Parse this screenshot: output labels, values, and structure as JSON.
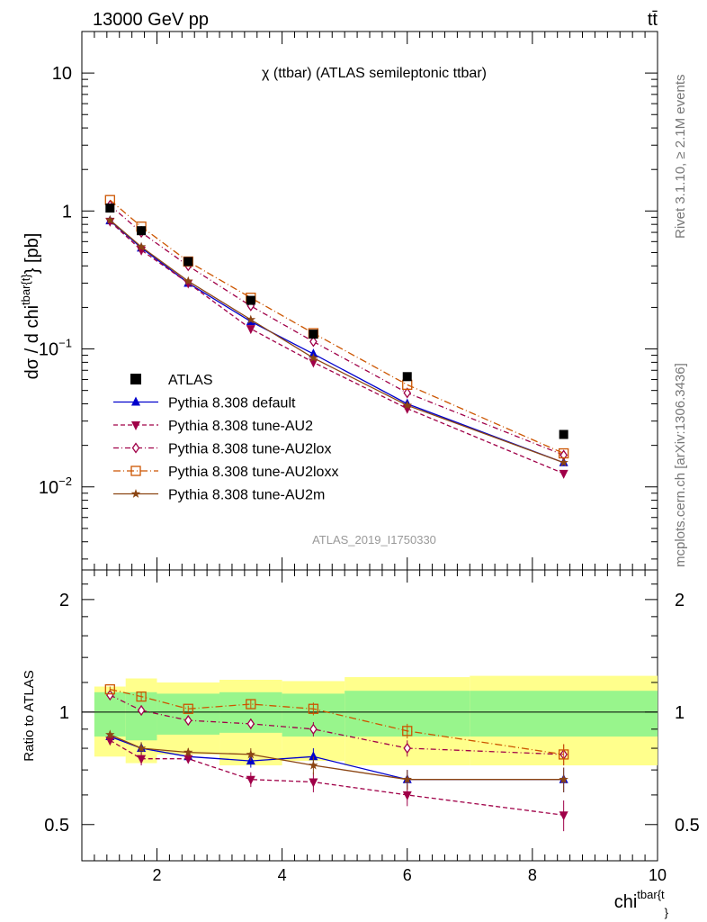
{
  "header": {
    "left": "13000 GeV pp",
    "right": "tt̄"
  },
  "side_text": {
    "rivet": "Rivet 3.1.10, ≥ 2.1M events",
    "mcplots": "mcplots.cern.ch [arXiv:1306.3436]"
  },
  "chart_data": {
    "type": "line",
    "title": "χ (ttbar) (ATLAS semileptonic ttbar)",
    "watermark": "ATLAS_2019_I1750330",
    "xlabel": "chi^{tbar{t}}",
    "ylabel": "dσ / d chi^{tbar{t}} [pb]",
    "ratio_ylabel": "Ratio to ATLAS",
    "xlim": [
      0.8,
      10
    ],
    "ylim": [
      0.0025,
      20
    ],
    "yscale": "log",
    "ratio_ylim": [
      0.4,
      2.4
    ],
    "x_ticks": [
      "2",
      "4",
      "6",
      "8",
      "10"
    ],
    "y_ticks": [
      "10^-2",
      "10^-1",
      "1",
      "10"
    ],
    "ratio_ticks": [
      "0.5",
      "1",
      "2"
    ],
    "bins": [
      {
        "lo": 1.0,
        "hi": 1.5
      },
      {
        "lo": 1.5,
        "hi": 2.0
      },
      {
        "lo": 2.0,
        "hi": 3.0
      },
      {
        "lo": 3.0,
        "hi": 4.0
      },
      {
        "lo": 4.0,
        "hi": 5.0
      },
      {
        "lo": 5.0,
        "hi": 7.0
      },
      {
        "lo": 7.0,
        "hi": 10.0
      }
    ],
    "x": [
      1.25,
      1.75,
      2.5,
      3.5,
      4.5,
      6.0,
      8.5
    ],
    "data": {
      "name": "ATLAS",
      "values": [
        1.05,
        0.72,
        0.43,
        0.225,
        0.128,
        0.063,
        0.024
      ],
      "band_inner": [
        [
          0.86,
          1.13
        ],
        [
          0.84,
          1.13
        ],
        [
          0.87,
          1.12
        ],
        [
          0.88,
          1.13
        ],
        [
          0.86,
          1.12
        ],
        [
          0.86,
          1.14
        ],
        [
          0.86,
          1.14
        ]
      ],
      "band_outer": [
        [
          0.76,
          1.17
        ],
        [
          0.73,
          1.23
        ],
        [
          0.77,
          1.2
        ],
        [
          0.72,
          1.22
        ],
        [
          0.74,
          1.21
        ],
        [
          0.72,
          1.24
        ],
        [
          0.72,
          1.25
        ]
      ]
    },
    "series": [
      {
        "name": "Pythia 8.308 default",
        "color": "#0000cc",
        "marker": "triangle-up",
        "dash": "",
        "values": [
          0.85,
          0.54,
          0.3,
          0.158,
          0.092,
          0.04,
          0.015
        ],
        "ratio": [
          0.86,
          0.8,
          0.76,
          0.74,
          0.76,
          0.66,
          0.66
        ],
        "ratio_err": [
          0.02,
          0.03,
          0.02,
          0.03,
          0.04,
          0.04,
          0.05
        ]
      },
      {
        "name": "Pythia 8.308 tune-AU2",
        "color": "#a00048",
        "marker": "triangle-down",
        "dash": "5,3",
        "values": [
          0.84,
          0.52,
          0.3,
          0.14,
          0.08,
          0.037,
          0.0125
        ],
        "ratio": [
          0.84,
          0.75,
          0.75,
          0.66,
          0.65,
          0.6,
          0.53
        ],
        "ratio_err": [
          0.02,
          0.03,
          0.02,
          0.03,
          0.04,
          0.04,
          0.05
        ]
      },
      {
        "name": "Pythia 8.308 tune-AU2lox",
        "color": "#a00048",
        "marker": "diamond-open",
        "dash": "6,3,1,3",
        "values": [
          1.1,
          0.7,
          0.4,
          0.205,
          0.113,
          0.048,
          0.017
        ],
        "ratio": [
          1.11,
          1.01,
          0.95,
          0.93,
          0.9,
          0.8,
          0.77
        ],
        "ratio_err": [
          0.02,
          0.03,
          0.02,
          0.03,
          0.04,
          0.04,
          0.05
        ]
      },
      {
        "name": "Pythia 8.308 tune-AU2loxx",
        "color": "#cc5500",
        "marker": "square-open",
        "dash": "8,3,1,3",
        "values": [
          1.2,
          0.77,
          0.43,
          0.235,
          0.13,
          0.055,
          0.0175
        ],
        "ratio": [
          1.15,
          1.1,
          1.02,
          1.05,
          1.02,
          0.89,
          0.77
        ],
        "ratio_err": [
          0.02,
          0.03,
          0.02,
          0.03,
          0.04,
          0.04,
          0.05
        ]
      },
      {
        "name": "Pythia 8.308 tune-AU2m",
        "color": "#8b4513",
        "marker": "star",
        "dash": "",
        "values": [
          0.86,
          0.55,
          0.31,
          0.163,
          0.086,
          0.039,
          0.015
        ],
        "ratio": [
          0.87,
          0.8,
          0.78,
          0.77,
          0.72,
          0.66,
          0.66
        ],
        "ratio_err": [
          0.02,
          0.03,
          0.02,
          0.03,
          0.04,
          0.04,
          0.05
        ]
      }
    ],
    "legend_placement": "bottom-left of main panel"
  }
}
